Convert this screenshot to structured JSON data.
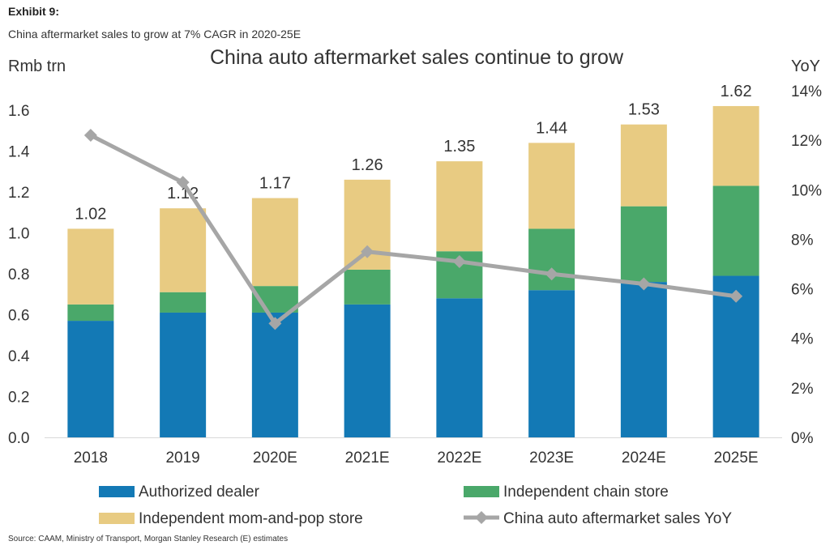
{
  "exhibit_label": "Exhibit 9:",
  "subtitle": "China aftermarket sales to grow at 7% CAGR in 2020-25E",
  "source": "Source: CAAM, Ministry of Transport, Morgan Stanley Research (E) estimates",
  "colors": {
    "authorized": "#1379b5",
    "chain": "#4aa86a",
    "mompop": "#e8cb82",
    "yoy": "#a6a6a6",
    "text": "#333333"
  },
  "chart_data": {
    "type": "bar",
    "stacked": true,
    "title": "China auto aftermarket sales continue to grow",
    "ylabel": "Rmb trn",
    "y2label": "YoY",
    "ylim": [
      0,
      1.7
    ],
    "y2lim": [
      0,
      0.14
    ],
    "yticks": [
      "0.0",
      "0.2",
      "0.4",
      "0.6",
      "0.8",
      "1.0",
      "1.2",
      "1.4",
      "1.6"
    ],
    "y2ticks": [
      "0%",
      "2%",
      "4%",
      "6%",
      "8%",
      "10%",
      "12%",
      "14%"
    ],
    "categories": [
      "2018",
      "2019",
      "2020E",
      "2021E",
      "2022E",
      "2023E",
      "2024E",
      "2025E"
    ],
    "series": [
      {
        "name": "Authorized dealer",
        "color_key": "authorized",
        "values": [
          0.57,
          0.61,
          0.61,
          0.65,
          0.68,
          0.72,
          0.76,
          0.79
        ]
      },
      {
        "name": "Independent chain store",
        "color_key": "chain",
        "values": [
          0.08,
          0.1,
          0.13,
          0.17,
          0.23,
          0.3,
          0.37,
          0.44
        ]
      },
      {
        "name": "Independent mom-and-pop store",
        "color_key": "mompop",
        "values": [
          0.37,
          0.41,
          0.43,
          0.44,
          0.44,
          0.42,
          0.4,
          0.39
        ]
      }
    ],
    "totals": [
      "1.02",
      "1.12",
      "1.17",
      "1.26",
      "1.35",
      "1.44",
      "1.53",
      "1.62"
    ],
    "line": {
      "name": "China auto aftermarket sales YoY",
      "axis": "right",
      "color_key": "yoy",
      "values": [
        0.122,
        0.103,
        0.046,
        0.075,
        0.071,
        0.066,
        0.062,
        0.057
      ]
    },
    "legend_position": "bottom"
  }
}
